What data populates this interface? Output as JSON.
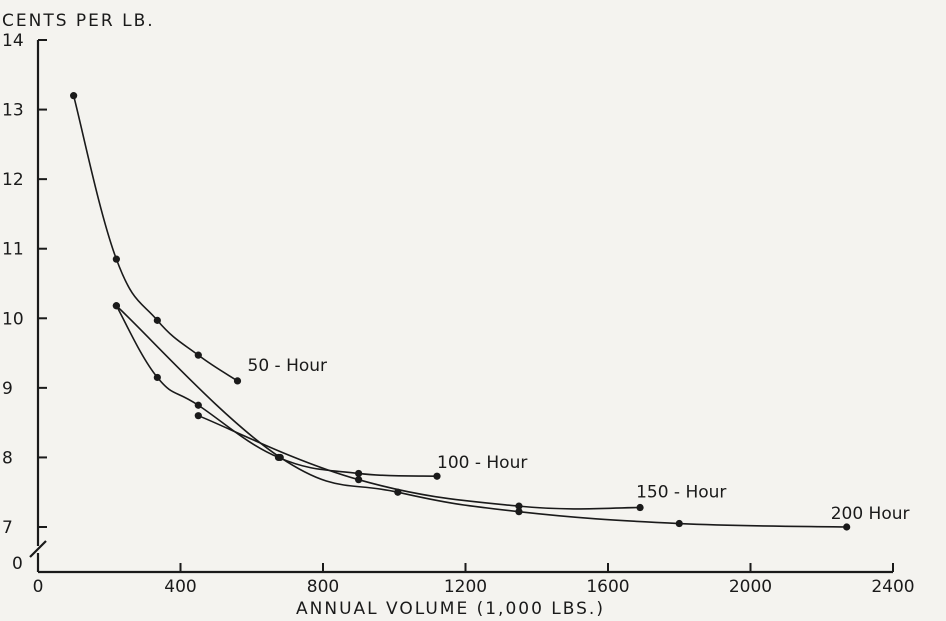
{
  "chart_data": {
    "type": "line",
    "ylabel": "CENTS PER LB.",
    "xlabel": "ANNUAL VOLUME (1,000 LBS.)",
    "xlim": [
      0,
      2400
    ],
    "ylim": [
      7,
      14
    ],
    "x_ticks": [
      0,
      400,
      800,
      1200,
      1600,
      2000,
      2400
    ],
    "y_ticks": [
      7,
      8,
      9,
      10,
      11,
      12,
      13,
      14
    ],
    "y_zero_label": "0",
    "y_axis_break": true,
    "grid": false,
    "series": [
      {
        "name": "50 - Hour",
        "points": [
          [
            100,
            13.2
          ],
          [
            220,
            10.85
          ],
          [
            335,
            9.97
          ],
          [
            450,
            9.47
          ],
          [
            560,
            9.1
          ]
        ]
      },
      {
        "name": "100 - Hour",
        "points": [
          [
            220,
            10.18
          ],
          [
            335,
            9.15
          ],
          [
            450,
            8.75
          ],
          [
            675,
            8.0
          ],
          [
            900,
            7.77
          ],
          [
            1120,
            7.73
          ]
        ]
      },
      {
        "name": "150 - Hour",
        "points": [
          [
            450,
            8.6
          ],
          [
            900,
            7.68
          ],
          [
            1350,
            7.3
          ],
          [
            1690,
            7.28
          ]
        ]
      },
      {
        "name": "200 Hour",
        "points": [
          [
            220,
            10.18
          ],
          [
            680,
            8.0
          ],
          [
            1010,
            7.5
          ],
          [
            1350,
            7.22
          ],
          [
            1800,
            7.05
          ],
          [
            2270,
            7.0
          ]
        ]
      }
    ]
  }
}
